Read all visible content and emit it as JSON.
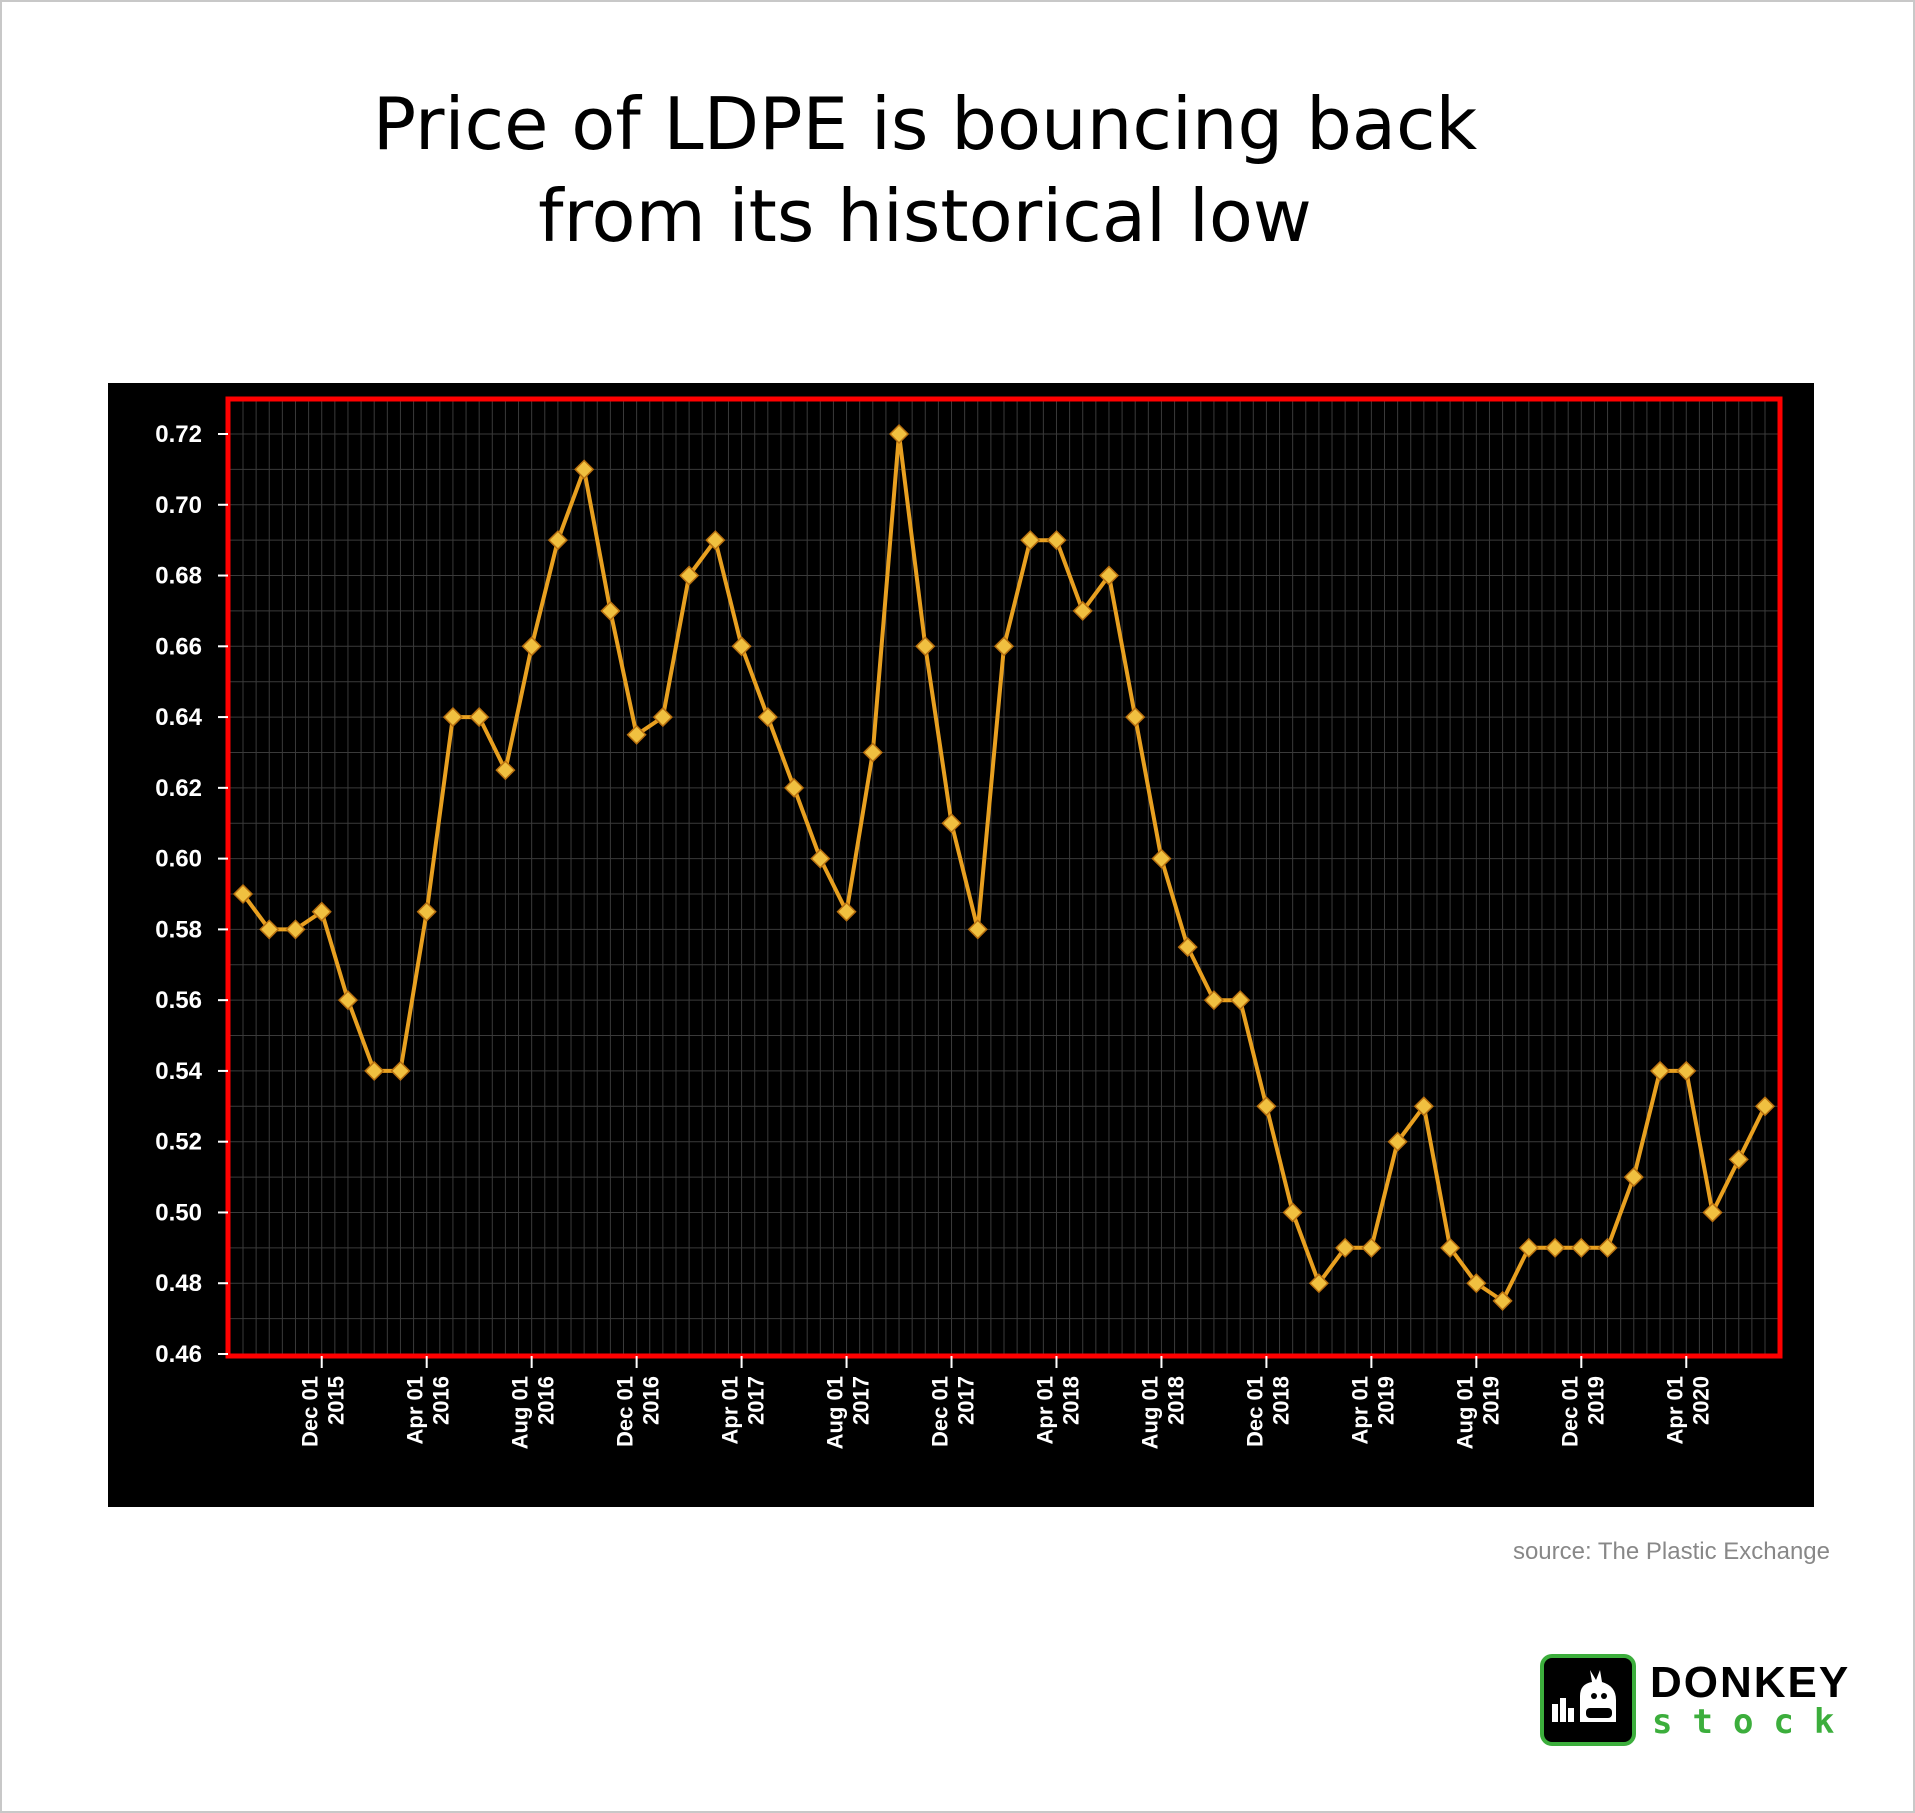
{
  "title_lines": [
    "Price of LDPE is bouncing back",
    "from its historical low"
  ],
  "source": "source: The Plastic Exchange",
  "logo": {
    "top": "DONKEY",
    "bottom": "stock",
    "icon": "donkey-icon"
  },
  "colors": {
    "background": "#000000",
    "plot_border": "#ff0000",
    "line": "#e8a020",
    "marker": "#f0c040",
    "grid": "#3a3a3a"
  },
  "chart_data": {
    "type": "line",
    "xlabel": "",
    "ylabel": "",
    "ylim": [
      0.46,
      0.72
    ],
    "yticks": [
      "0.72",
      "0.70",
      "0.68",
      "0.66",
      "0.64",
      "0.62",
      "0.60",
      "0.58",
      "0.56",
      "0.54",
      "0.52",
      "0.50",
      "0.48",
      "0.46"
    ],
    "xticks": [
      {
        "month": "Dec 01",
        "year": "2015",
        "index": 3
      },
      {
        "month": "Apr 01",
        "year": "2016",
        "index": 7
      },
      {
        "month": "Aug 01",
        "year": "2016",
        "index": 11
      },
      {
        "month": "Dec 01",
        "year": "2016",
        "index": 15
      },
      {
        "month": "Apr 01",
        "year": "2017",
        "index": 19
      },
      {
        "month": "Aug 01",
        "year": "2017",
        "index": 23
      },
      {
        "month": "Dec 01",
        "year": "2017",
        "index": 27
      },
      {
        "month": "Apr 01",
        "year": "2018",
        "index": 31
      },
      {
        "month": "Aug 01",
        "year": "2018",
        "index": 35
      },
      {
        "month": "Dec 01",
        "year": "2018",
        "index": 39
      },
      {
        "month": "Apr 01",
        "year": "2019",
        "index": 43
      },
      {
        "month": "Aug 01",
        "year": "2019",
        "index": 47
      },
      {
        "month": "Dec 01",
        "year": "2019",
        "index": 51
      },
      {
        "month": "Apr 01",
        "year": "2020",
        "index": 55
      }
    ],
    "x": [
      "2015-09",
      "2015-10",
      "2015-11",
      "2015-12",
      "2016-01",
      "2016-02",
      "2016-03",
      "2016-04",
      "2016-05",
      "2016-06",
      "2016-07",
      "2016-08",
      "2016-09",
      "2016-10",
      "2016-11",
      "2016-12",
      "2017-01",
      "2017-02",
      "2017-03",
      "2017-04",
      "2017-05",
      "2017-06",
      "2017-07",
      "2017-08",
      "2017-09",
      "2017-10",
      "2017-11",
      "2017-12",
      "2018-01",
      "2018-02",
      "2018-03",
      "2018-04",
      "2018-05",
      "2018-06",
      "2018-07",
      "2018-08",
      "2018-09",
      "2018-10",
      "2018-11",
      "2018-12",
      "2019-01",
      "2019-02",
      "2019-03",
      "2019-04",
      "2019-05",
      "2019-06",
      "2019-07",
      "2019-08",
      "2019-09",
      "2019-10",
      "2019-11",
      "2019-12",
      "2020-01",
      "2020-02",
      "2020-03",
      "2020-04",
      "2020-05",
      "2020-06",
      "2020-07"
    ],
    "series": [
      {
        "values": [
          0.59,
          0.58,
          0.58,
          0.585,
          0.56,
          0.54,
          0.54,
          0.585,
          0.64,
          0.64,
          0.625,
          0.66,
          0.69,
          0.71,
          0.67,
          0.635,
          0.64,
          0.68,
          0.69,
          0.66,
          0.64,
          0.62,
          0.6,
          0.585,
          0.63,
          0.72,
          0.66,
          0.61,
          0.58,
          0.66,
          0.69,
          0.69,
          0.67,
          0.68,
          0.64,
          0.6,
          0.575,
          0.56,
          0.56,
          0.53,
          0.5,
          0.48,
          0.49,
          0.49,
          0.52,
          0.53,
          0.49,
          0.48,
          0.475,
          0.49,
          0.49,
          0.49,
          0.49,
          0.51,
          0.54,
          0.54,
          0.5,
          0.515,
          0.53
        ]
      }
    ]
  }
}
